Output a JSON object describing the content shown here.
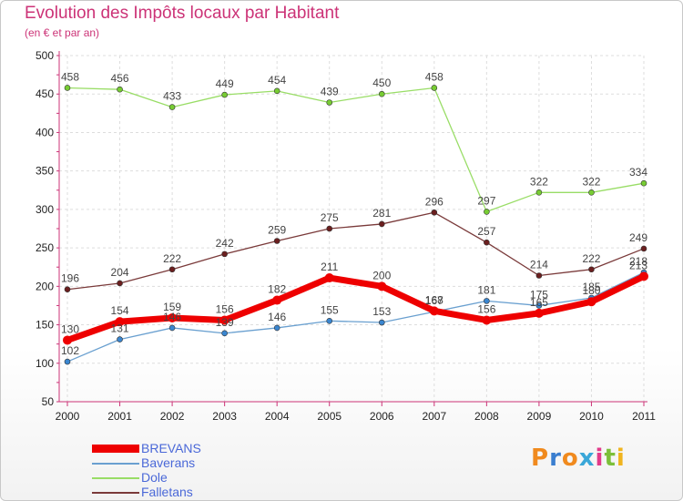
{
  "title": "Evolution des Impôts locaux par Habitant",
  "subtitle": "(en € et par an)",
  "brand": {
    "letters": [
      "P",
      "r",
      "o",
      "x",
      "i",
      "t",
      "i"
    ],
    "colors": [
      "#f08a1e",
      "#3a7ecf",
      "#f08a1e",
      "#3aa7d8",
      "#e23a8a",
      "#7cbf3a",
      "#f0b41e"
    ]
  },
  "chart_data": {
    "type": "line",
    "title": "Evolution des Impôts locaux par Habitant",
    "subtitle": "(en € et par an)",
    "x": [
      "2000",
      "2001",
      "2002",
      "2003",
      "2004",
      "2005",
      "2006",
      "2007",
      "2008",
      "2009",
      "2010",
      "2011"
    ],
    "ylim": [
      50,
      500
    ],
    "yticks": [
      "50",
      "100",
      "150",
      "200",
      "250",
      "300",
      "350",
      "400",
      "450",
      "500"
    ],
    "xlabel": "",
    "ylabel": "",
    "legend_position": "bottom-left",
    "series": [
      {
        "name": "Dole",
        "color": "#99dd66",
        "marker": "#77cc33",
        "values": [
          458,
          456,
          433,
          449,
          454,
          439,
          450,
          458,
          297,
          322,
          322,
          334
        ],
        "labels": [
          "458",
          "456",
          "433",
          "449",
          "454",
          "439",
          "450",
          "458",
          "297",
          "322",
          "322",
          "334"
        ]
      },
      {
        "name": "Falletans",
        "color": "#7a3a3a",
        "marker": "#6b1f1f",
        "values": [
          196,
          204,
          222,
          242,
          259,
          275,
          281,
          296,
          257,
          214,
          222,
          249
        ],
        "labels": [
          "196",
          "204",
          "222",
          "242",
          "259",
          "275",
          "281",
          "296",
          "257",
          "214",
          "222",
          "249"
        ]
      },
      {
        "name": "Baverans",
        "color": "#6aa0d0",
        "marker": "#3a86d0",
        "values": [
          102,
          131,
          146,
          139,
          146,
          155,
          153,
          167,
          181,
          175,
          185,
          218
        ],
        "labels": [
          "102",
          "131",
          "146",
          "139",
          "146",
          "155",
          "153",
          "167",
          "181",
          "175",
          "185",
          "218"
        ]
      },
      {
        "name": "BREVANS",
        "color": "#ee0000",
        "marker": "#ee0000",
        "values": [
          130,
          154,
          159,
          156,
          182,
          211,
          200,
          168,
          156,
          165,
          180,
          213
        ],
        "labels": [
          "130",
          "154",
          "159",
          "156",
          "182",
          "211",
          "200",
          "168",
          "156",
          "165",
          "180",
          "213"
        ]
      }
    ],
    "legend": [
      "BREVANS",
      "Baverans",
      "Dole",
      "Falletans"
    ]
  }
}
